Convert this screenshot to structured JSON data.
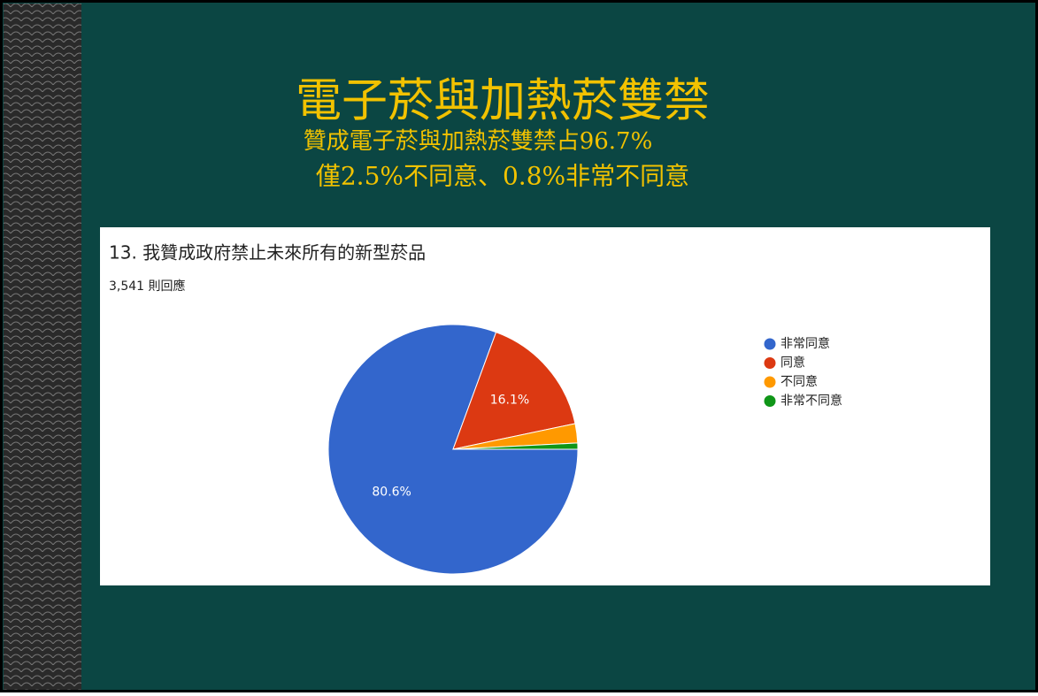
{
  "slide": {
    "title": "電子菸與加熱菸雙禁",
    "subtitle_lines": [
      "贊成電子菸與加熱菸雙禁占96.7%",
      "僅2.5%不同意、0.8%非常不同意"
    ]
  },
  "chart_data": {
    "type": "pie",
    "title": "13. 我贊成政府禁止未來所有的新型菸品",
    "subtitle": "3,541 則回應",
    "categories": [
      "非常同意",
      "同意",
      "不同意",
      "非常不同意"
    ],
    "values": [
      80.6,
      16.1,
      2.5,
      0.8
    ],
    "value_labels": [
      "80.6%",
      "16.1%",
      null,
      null
    ],
    "colors": [
      "#3366cc",
      "#dc3912",
      "#ff9900",
      "#109618"
    ],
    "legend": "right"
  }
}
